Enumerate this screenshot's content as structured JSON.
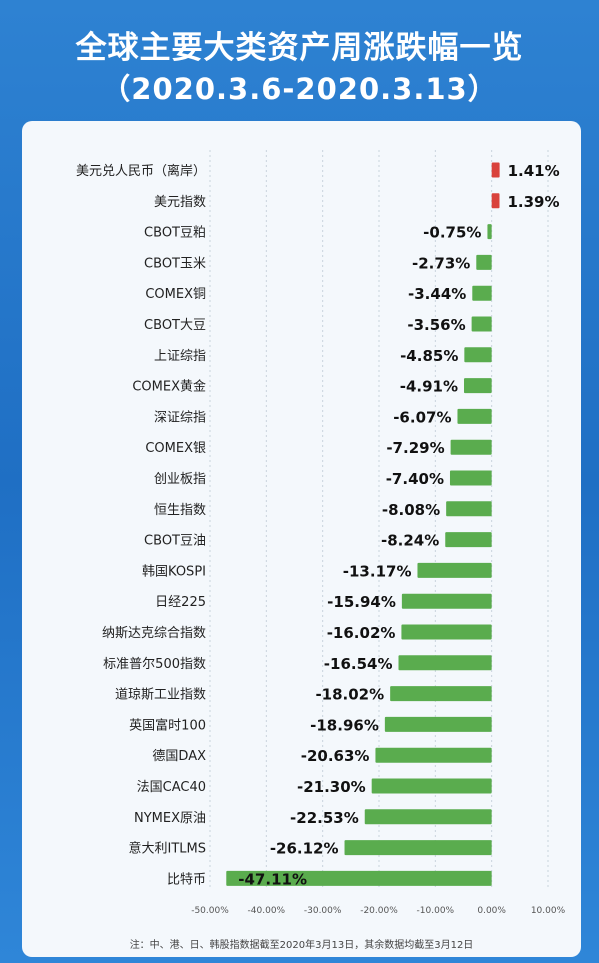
{
  "header": {
    "title": "全球主要大类资产周涨跌幅一览",
    "subtitle": "（2020.3.6-2020.3.13）"
  },
  "footnote": "注：中、港、日、韩股指数据截至2020年3月13日，其余数据均截至3月12日",
  "colors": {
    "positive": "#d9423c",
    "negative": "#5aac4e"
  },
  "chart_data": {
    "type": "bar",
    "orientation": "horizontal",
    "categories": [
      "美元兑人民币（离岸）",
      "美元指数",
      "CBOT豆粕",
      "CBOT玉米",
      "COMEX铜",
      "CBOT大豆",
      "上证综指",
      "COMEX黄金",
      "深证综指",
      "COMEX银",
      "创业板指",
      "恒生指数",
      "CBOT豆油",
      "韩国KOSPI",
      "日经225",
      "纳斯达克综合指数",
      "标准普尔500指数",
      "道琼斯工业指数",
      "英国富时100",
      "德国DAX",
      "法国CAC40",
      "NYMEX原油",
      "意大利ITLMS",
      "比特币"
    ],
    "values": [
      1.41,
      1.39,
      -0.75,
      -2.73,
      -3.44,
      -3.56,
      -4.85,
      -4.91,
      -6.07,
      -7.29,
      -7.4,
      -8.08,
      -8.24,
      -13.17,
      -15.94,
      -16.02,
      -16.54,
      -18.02,
      -18.96,
      -20.63,
      -21.3,
      -22.53,
      -26.12,
      -47.11
    ],
    "labels": [
      "1.41%",
      "1.39%",
      "-0.75%",
      "-2.73%",
      "-3.44%",
      "-3.56%",
      "-4.85%",
      "-4.91%",
      "-6.07%",
      "-7.29%",
      "-7.40%",
      "-8.08%",
      "-8.24%",
      "-13.17%",
      "-15.94%",
      "-16.02%",
      "-16.54%",
      "-18.02%",
      "-18.96%",
      "-20.63%",
      "-21.30%",
      "-22.53%",
      "-26.12%",
      "-47.11%"
    ],
    "xticks": [
      "-50.00%",
      "-40.00%",
      "-30.00%",
      "-20.00%",
      "-10.00%",
      "0.00%",
      "10.00%"
    ],
    "xlim": [
      -50,
      10
    ]
  }
}
